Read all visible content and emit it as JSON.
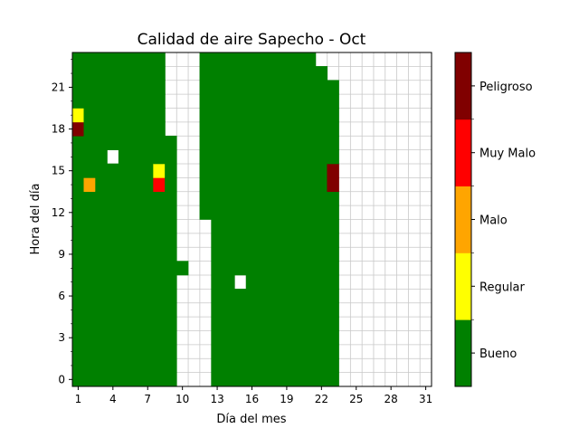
{
  "chart_data": {
    "type": "heatmap",
    "title": "Calidad de aire Sapecho - Oct",
    "xlabel": "Día del mes",
    "ylabel": "Hora del día",
    "x_ticks": [
      "1",
      "4",
      "7",
      "10",
      "13",
      "16",
      "19",
      "22",
      "25",
      "28",
      "31"
    ],
    "y_ticks": [
      "0",
      "3",
      "6",
      "9",
      "12",
      "15",
      "18",
      "21"
    ],
    "xlim": [
      1,
      31
    ],
    "ylim": [
      0,
      23
    ],
    "grid": true,
    "colorbar": {
      "labels": [
        "Bueno",
        "Regular",
        "Malo",
        "Muy Malo",
        "Peligroso"
      ],
      "colors": [
        "#008000",
        "#ffff00",
        "#ffa500",
        "#ff0000",
        "#800000"
      ]
    },
    "coverage_by_day": [
      {
        "days": [
          1,
          8
        ],
        "hours": [
          0,
          23
        ]
      },
      {
        "days": [
          9,
          9
        ],
        "hours": [
          0,
          17
        ]
      },
      {
        "days": [
          10,
          10
        ],
        "hours": [
          8,
          8
        ]
      },
      {
        "days": [
          12,
          12
        ],
        "hours": [
          12,
          23
        ]
      },
      {
        "days": [
          13,
          22
        ],
        "hours": [
          0,
          23
        ]
      },
      {
        "days": [
          23,
          23
        ],
        "hours": [
          0,
          21
        ]
      }
    ],
    "missing_points": [
      {
        "day": 4,
        "hour": 16
      },
      {
        "day": 15,
        "hour": 7
      },
      {
        "day": 22,
        "hour": 23
      }
    ],
    "category_points": [
      {
        "day": 1,
        "hour": 19,
        "category": "Regular"
      },
      {
        "day": 1,
        "hour": 18,
        "category": "Peligroso"
      },
      {
        "day": 2,
        "hour": 14,
        "category": "Malo"
      },
      {
        "day": 8,
        "hour": 15,
        "category": "Regular"
      },
      {
        "day": 8,
        "hour": 14,
        "category": "Muy Malo"
      },
      {
        "day": 23,
        "hour": 15,
        "category": "Peligroso"
      },
      {
        "day": 23,
        "hour": 14,
        "category": "Peligroso"
      }
    ]
  }
}
